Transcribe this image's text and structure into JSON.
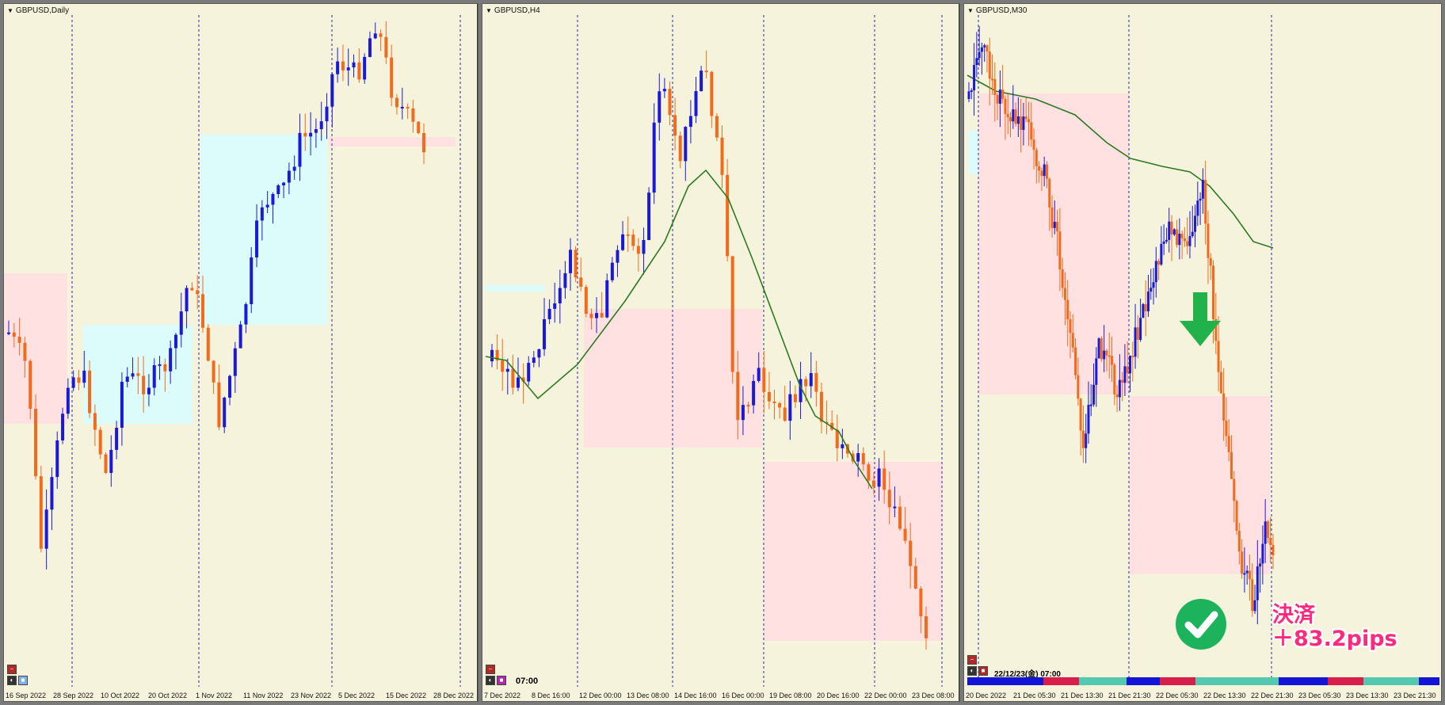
{
  "panels": [
    {
      "title": "GBPUSD,Daily",
      "x_labels": [
        "16 Sep 2022",
        "28 Sep 2022",
        "10 Oct 2022",
        "20 Oct 2022",
        "1 Nov 2022",
        "11 Nov 2022",
        "23 Nov 2022",
        "5 Dec 2022",
        "15 Dec 2022",
        "28 Dec 2022"
      ]
    },
    {
      "title": "GBPUSD,H4",
      "x_labels": [
        "7 Dec 2022",
        "8 Dec 16:00",
        "12 Dec 00:00",
        "13 Dec 08:00",
        "14 Dec 16:00",
        "16 Dec 00:00",
        "19 Dec 08:00",
        "20 Dec 16:00",
        "22 Dec 00:00",
        "23 Dec 08:00"
      ],
      "time_tag": "07:00"
    },
    {
      "title": "GBPUSD,M30",
      "x_labels": [
        "20 Dec 2022",
        "21 Dec 05:30",
        "21 Dec 13:30",
        "21 Dec 21:30",
        "22 Dec 05:30",
        "22 Dec 13:30",
        "22 Dec 21:30",
        "23 Dec 05:30",
        "23 Dec 13:30",
        "23 Dec 21:30"
      ],
      "time_tag": "22/12/23(金) 07:00"
    }
  ],
  "annotation": {
    "line1": "決済",
    "line2": "＋83.2pips"
  },
  "colors": {
    "background": "#f6f3dc",
    "bull": "#1a1ad6",
    "bear": "#f26b1d",
    "ma": "#2b7a1f",
    "zone_pink": "#ffe1e1",
    "zone_cyan": "#dcfbfb",
    "arrow": "#22b24c"
  }
}
